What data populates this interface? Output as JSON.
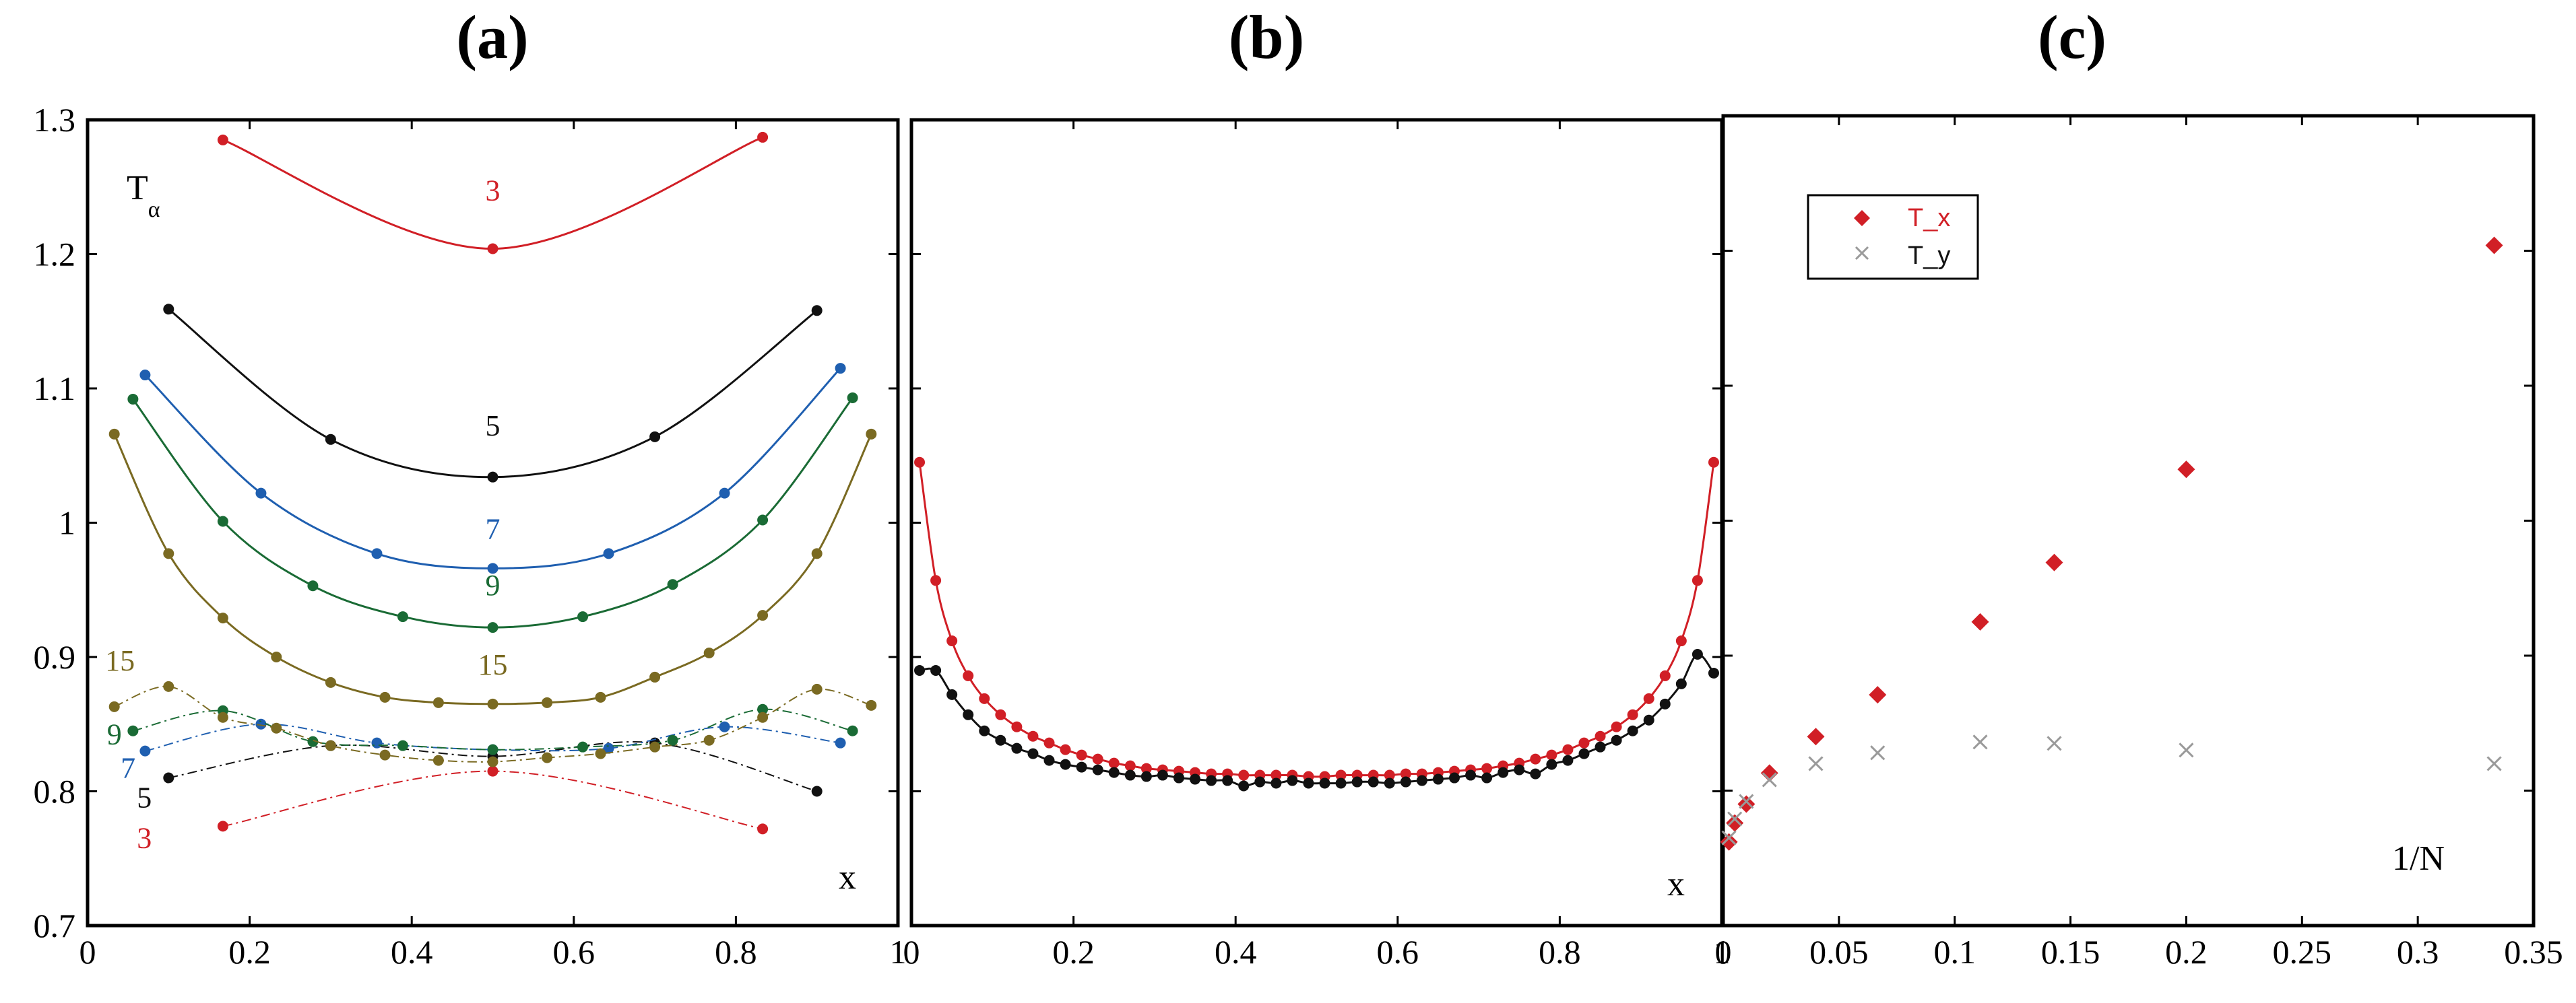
{
  "chart_data": [
    {
      "id": "a",
      "type": "line",
      "title": "(a)",
      "xlabel": "x",
      "ylabel_main": "T",
      "ylabel_sub": "α",
      "xlim": [
        0,
        1
      ],
      "ylim": [
        0.7,
        1.3
      ],
      "xticks": [
        0,
        0.2,
        0.4,
        0.6,
        0.8,
        1
      ],
      "xtick_labels": [
        "0",
        "0.2",
        "0.4",
        "0.6",
        "0.8",
        "1"
      ],
      "yticks": [
        0.7,
        0.8,
        0.9,
        1.0,
        1.1,
        1.2,
        1.3
      ],
      "ytick_labels": [
        "0.7",
        "0.8",
        "0.9",
        "1",
        "1.1",
        "1.2",
        "1.3"
      ],
      "series": [
        {
          "name": "3",
          "component": "T_x",
          "color": "#d11f26",
          "label_at": [
            0.5,
            1.24
          ],
          "x": [
            0.167,
            0.5,
            0.833
          ],
          "y": [
            1.285,
            1.204,
            1.287
          ]
        },
        {
          "name": "5",
          "component": "T_x",
          "color": "#111111",
          "label_at": [
            0.5,
            1.065
          ],
          "x": [
            0.1,
            0.3,
            0.5,
            0.7,
            0.9
          ],
          "y": [
            1.159,
            1.062,
            1.034,
            1.064,
            1.158
          ]
        },
        {
          "name": "7",
          "component": "T_x",
          "color": "#1f5fb0",
          "label_at": [
            0.5,
            0.988
          ],
          "x": [
            0.071,
            0.214,
            0.357,
            0.5,
            0.643,
            0.786,
            0.929
          ],
          "y": [
            1.11,
            1.022,
            0.977,
            0.966,
            0.977,
            1.022,
            1.115
          ]
        },
        {
          "name": "9",
          "component": "T_x",
          "color": "#1a6b35",
          "label_at": [
            0.5,
            0.946
          ],
          "x": [
            0.056,
            0.167,
            0.278,
            0.389,
            0.5,
            0.611,
            0.722,
            0.833,
            0.944
          ],
          "y": [
            1.092,
            1.001,
            0.953,
            0.93,
            0.922,
            0.93,
            0.954,
            1.002,
            1.093
          ]
        },
        {
          "name": "15",
          "component": "T_x",
          "color": "#7a6a22",
          "label_at": [
            0.5,
            0.887
          ],
          "x": [
            0.033,
            0.1,
            0.167,
            0.233,
            0.3,
            0.367,
            0.433,
            0.5,
            0.567,
            0.633,
            0.7,
            0.767,
            0.833,
            0.9,
            0.967
          ],
          "y": [
            1.066,
            0.977,
            0.929,
            0.9,
            0.881,
            0.87,
            0.866,
            0.865,
            0.866,
            0.87,
            0.885,
            0.903,
            0.931,
            0.977,
            1.066
          ]
        },
        {
          "name": "3",
          "component": "T_y",
          "color": "#d11f26",
          "label_at": [
            0.07,
            0.758
          ],
          "x": [
            0.167,
            0.5,
            0.833
          ],
          "y": [
            0.774,
            0.815,
            0.772
          ]
        },
        {
          "name": "5",
          "component": "T_y",
          "color": "#111111",
          "label_at": [
            0.07,
            0.788
          ],
          "x": [
            0.1,
            0.3,
            0.5,
            0.7,
            0.9
          ],
          "y": [
            0.81,
            0.834,
            0.826,
            0.836,
            0.8
          ]
        },
        {
          "name": "7",
          "component": "T_y",
          "color": "#1f5fb0",
          "label_at": [
            0.05,
            0.81
          ],
          "x": [
            0.071,
            0.214,
            0.357,
            0.5,
            0.643,
            0.786,
            0.929
          ],
          "y": [
            0.83,
            0.85,
            0.836,
            0.831,
            0.832,
            0.848,
            0.836
          ]
        },
        {
          "name": "9",
          "component": "T_y",
          "color": "#1a6b35",
          "label_at": [
            0.033,
            0.835
          ],
          "x": [
            0.056,
            0.167,
            0.278,
            0.389,
            0.5,
            0.611,
            0.722,
            0.833,
            0.944
          ],
          "y": [
            0.845,
            0.86,
            0.837,
            0.834,
            0.831,
            0.833,
            0.838,
            0.861,
            0.845
          ]
        },
        {
          "name": "15",
          "component": "T_y",
          "color": "#7a6a22",
          "label_at": [
            0.04,
            0.89
          ],
          "x": [
            0.033,
            0.1,
            0.167,
            0.233,
            0.3,
            0.367,
            0.433,
            0.5,
            0.567,
            0.633,
            0.7,
            0.767,
            0.833,
            0.9,
            0.967
          ],
          "y": [
            0.863,
            0.878,
            0.855,
            0.847,
            0.834,
            0.827,
            0.823,
            0.822,
            0.825,
            0.828,
            0.833,
            0.838,
            0.855,
            0.876,
            0.864
          ]
        }
      ]
    },
    {
      "id": "b",
      "type": "line",
      "title": "(b)",
      "xlabel": "x",
      "xlim": [
        0,
        1
      ],
      "ylim": [
        0.7,
        1.3
      ],
      "xticks": [
        0,
        0.2,
        0.4,
        0.6,
        0.8,
        1
      ],
      "xtick_labels": [
        "0",
        "0.2",
        "0.4",
        "0.6",
        "0.8",
        "1"
      ],
      "yticks": [
        0.7,
        0.8,
        0.9,
        1.0,
        1.1,
        1.2,
        1.3
      ],
      "series": [
        {
          "name": "T_x",
          "color": "#d11f26",
          "x": [
            0.01,
            0.03,
            0.05,
            0.07,
            0.09,
            0.11,
            0.13,
            0.15,
            0.17,
            0.19,
            0.21,
            0.23,
            0.25,
            0.27,
            0.29,
            0.31,
            0.33,
            0.35,
            0.37,
            0.39,
            0.41,
            0.43,
            0.45,
            0.47,
            0.49,
            0.51,
            0.53,
            0.55,
            0.57,
            0.59,
            0.61,
            0.63,
            0.65,
            0.67,
            0.69,
            0.71,
            0.73,
            0.75,
            0.77,
            0.79,
            0.81,
            0.83,
            0.85,
            0.87,
            0.89,
            0.91,
            0.93,
            0.95,
            0.97,
            0.99
          ],
          "y": [
            1.045,
            0.957,
            0.912,
            0.886,
            0.869,
            0.857,
            0.848,
            0.841,
            0.836,
            0.831,
            0.827,
            0.824,
            0.821,
            0.819,
            0.817,
            0.816,
            0.815,
            0.814,
            0.813,
            0.813,
            0.812,
            0.812,
            0.812,
            0.812,
            0.811,
            0.811,
            0.812,
            0.812,
            0.812,
            0.812,
            0.813,
            0.813,
            0.814,
            0.815,
            0.816,
            0.817,
            0.819,
            0.821,
            0.824,
            0.827,
            0.831,
            0.836,
            0.841,
            0.848,
            0.857,
            0.869,
            0.886,
            0.912,
            0.957,
            1.045
          ]
        },
        {
          "name": "T_y",
          "color": "#111111",
          "x": [
            0.01,
            0.03,
            0.05,
            0.07,
            0.09,
            0.11,
            0.13,
            0.15,
            0.17,
            0.19,
            0.21,
            0.23,
            0.25,
            0.27,
            0.29,
            0.31,
            0.33,
            0.35,
            0.37,
            0.39,
            0.41,
            0.43,
            0.45,
            0.47,
            0.49,
            0.51,
            0.53,
            0.55,
            0.57,
            0.59,
            0.61,
            0.63,
            0.65,
            0.67,
            0.69,
            0.71,
            0.73,
            0.75,
            0.77,
            0.79,
            0.81,
            0.83,
            0.85,
            0.87,
            0.89,
            0.91,
            0.93,
            0.95,
            0.97,
            0.99
          ],
          "y": [
            0.89,
            0.89,
            0.872,
            0.857,
            0.845,
            0.838,
            0.832,
            0.828,
            0.823,
            0.82,
            0.818,
            0.816,
            0.814,
            0.812,
            0.811,
            0.812,
            0.81,
            0.809,
            0.808,
            0.808,
            0.804,
            0.807,
            0.806,
            0.808,
            0.806,
            0.806,
            0.806,
            0.807,
            0.807,
            0.806,
            0.807,
            0.808,
            0.809,
            0.81,
            0.812,
            0.81,
            0.814,
            0.816,
            0.813,
            0.82,
            0.823,
            0.828,
            0.833,
            0.838,
            0.845,
            0.853,
            0.865,
            0.88,
            0.902,
            0.888
          ]
        }
      ]
    },
    {
      "id": "c",
      "type": "scatter",
      "title": "(c)",
      "xlabel": "1/N",
      "xlim": [
        0,
        0.35
      ],
      "ylim": [
        0.7,
        1.3
      ],
      "xticks": [
        0,
        0.05,
        0.1,
        0.15,
        0.2,
        0.25,
        0.3,
        0.35
      ],
      "xtick_labels": [
        "0",
        "0.05",
        "0.1",
        "0.15",
        "0.2",
        "0.25",
        "0.3",
        "0.35"
      ],
      "yticks": [
        0.7,
        0.8,
        0.9,
        1.0,
        1.1,
        1.2,
        1.3
      ],
      "legend": [
        {
          "label": "T_x",
          "color": "#d11f26",
          "marker": "diamond"
        },
        {
          "label": "T_y",
          "color": "#9a9a9a",
          "marker": "cross"
        }
      ],
      "series": [
        {
          "name": "T_x",
          "color": "#d11f26",
          "marker": "diamond",
          "x": [
            0.333,
            0.2,
            0.143,
            0.111,
            0.0667,
            0.04,
            0.02,
            0.01,
            0.005,
            0.0025
          ],
          "y": [
            1.204,
            1.038,
            0.969,
            0.925,
            0.871,
            0.84,
            0.813,
            0.79,
            0.776,
            0.762
          ]
        },
        {
          "name": "T_y",
          "color": "#9a9a9a",
          "marker": "cross",
          "x": [
            0.333,
            0.2,
            0.143,
            0.111,
            0.0667,
            0.04,
            0.02,
            0.01,
            0.005,
            0.0025
          ],
          "y": [
            0.82,
            0.83,
            0.835,
            0.836,
            0.828,
            0.82,
            0.808,
            0.792,
            0.779,
            0.765
          ]
        }
      ]
    }
  ]
}
